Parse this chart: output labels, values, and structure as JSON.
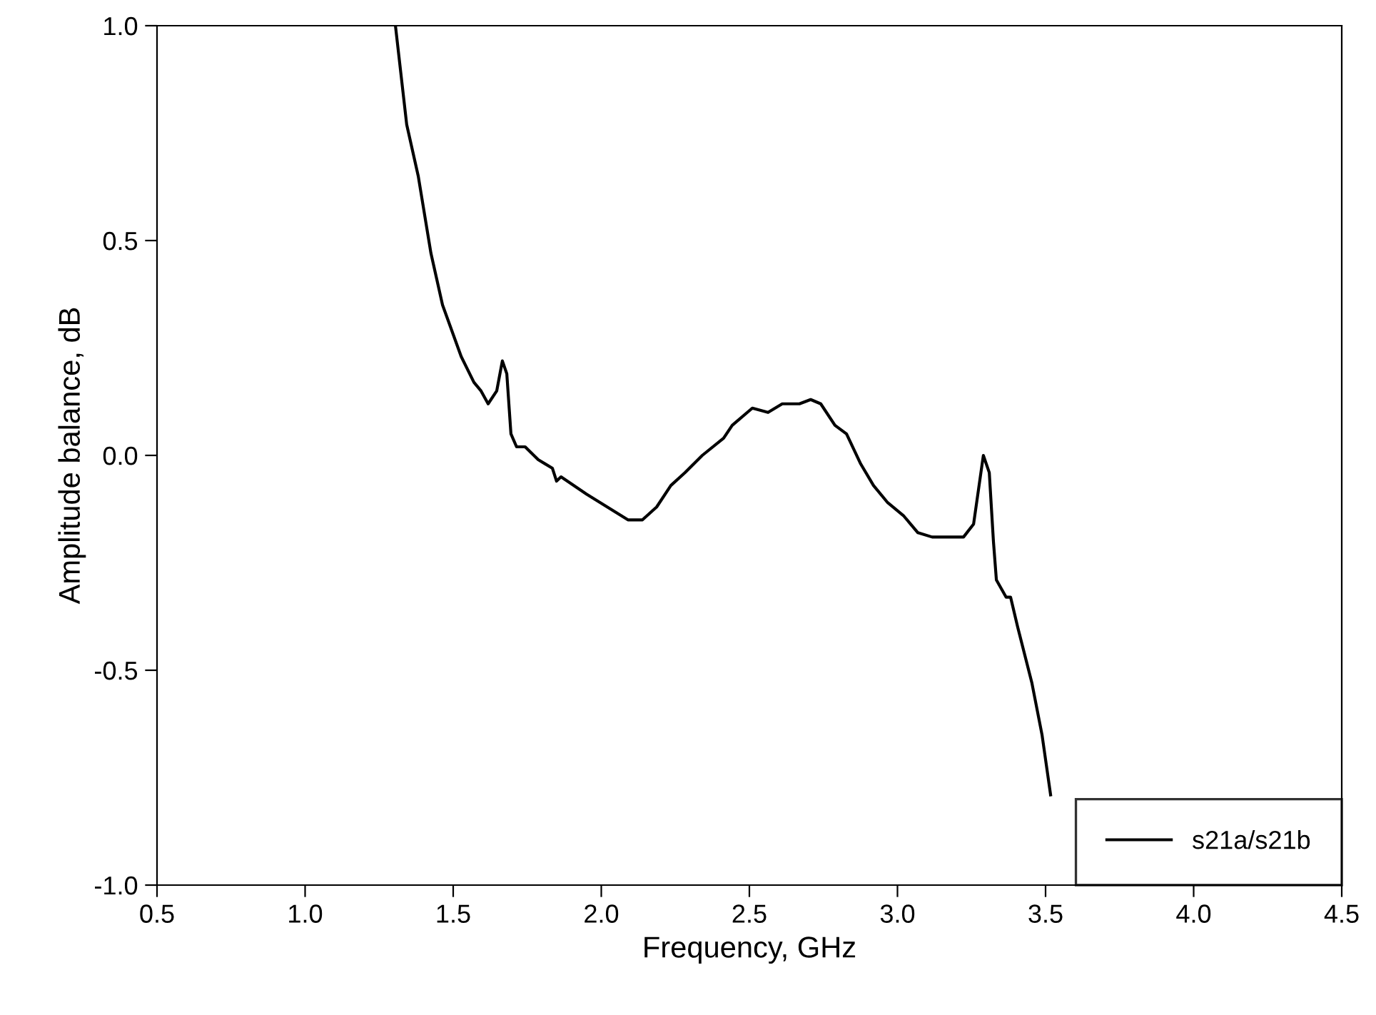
{
  "chart_data": {
    "type": "line",
    "xlabel": "Frequency, GHz",
    "ylabel": "Amplitude balance, dB",
    "xlim": [
      0.5,
      4.5
    ],
    "xticks": [
      {
        "value": 0.5,
        "label": "0.5"
      },
      {
        "value": 1.0,
        "label": "1.0"
      },
      {
        "value": 1.5,
        "label": "1.5"
      },
      {
        "value": 2.0,
        "label": "2.0"
      },
      {
        "value": 2.5,
        "label": "2.5"
      },
      {
        "value": 3.0,
        "label": "3.0"
      },
      {
        "value": 3.5,
        "label": "3.5"
      },
      {
        "value": 4.0,
        "label": "4.0"
      },
      {
        "value": 4.5,
        "label": "4.5"
      }
    ],
    "ylim": [
      -1.0,
      1.0
    ],
    "yticks": [
      {
        "value": -1.0,
        "label": "-1.0"
      },
      {
        "value": -0.5,
        "label": "-0.5"
      },
      {
        "value": 0.0,
        "label": "0.0"
      },
      {
        "value": 0.5,
        "label": "0.5"
      },
      {
        "value": 1.0,
        "label": "1.0"
      }
    ],
    "grid": false,
    "legend": "bottom right",
    "marker": "none",
    "line_style": "solid",
    "series": [
      {
        "name": "s21a/s21b",
        "color": "#000000",
        "x": [
          1.305,
          1.343,
          1.382,
          1.425,
          1.464,
          1.527,
          1.57,
          1.594,
          1.618,
          1.647,
          1.666,
          1.681,
          1.695,
          1.714,
          1.743,
          1.787,
          1.835,
          1.849,
          1.864,
          1.95,
          2.02,
          2.09,
          2.139,
          2.187,
          2.235,
          2.283,
          2.341,
          2.413,
          2.442,
          2.51,
          2.563,
          2.611,
          2.669,
          2.707,
          2.741,
          2.789,
          2.828,
          2.876,
          2.919,
          2.967,
          3.02,
          3.069,
          3.117,
          3.165,
          3.223,
          3.257,
          3.29,
          3.31,
          3.324,
          3.334,
          3.367,
          3.382,
          3.406,
          3.454,
          3.488,
          3.517
        ],
        "values": [
          1.0,
          0.77,
          0.65,
          0.47,
          0.35,
          0.23,
          0.17,
          0.15,
          0.12,
          0.15,
          0.22,
          0.19,
          0.05,
          0.02,
          0.02,
          -0.01,
          -0.03,
          -0.06,
          -0.05,
          -0.09,
          -0.12,
          -0.15,
          -0.15,
          -0.12,
          -0.07,
          -0.04,
          0.0,
          0.04,
          0.07,
          0.11,
          0.1,
          0.12,
          0.12,
          0.13,
          0.12,
          0.07,
          0.05,
          -0.02,
          -0.07,
          -0.11,
          -0.14,
          -0.18,
          -0.19,
          -0.19,
          -0.19,
          -0.16,
          0.0,
          -0.04,
          -0.2,
          -0.29,
          -0.33,
          -0.33,
          -0.4,
          -0.53,
          -0.65,
          -0.79
        ]
      }
    ]
  }
}
